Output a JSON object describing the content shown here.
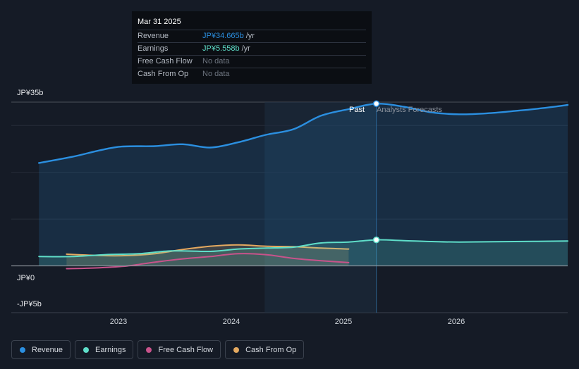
{
  "chart_data": {
    "type": "line",
    "y_unit": "JPY billions",
    "ylim": [
      -10,
      35
    ],
    "y_ticks": [
      {
        "value": 35,
        "label": "JP¥35b"
      },
      {
        "value": 0,
        "label": "JP¥0"
      },
      {
        "value": -5,
        "label": "-JP¥5b"
      }
    ],
    "x_ticks": [
      {
        "value": 2023.0,
        "label": "2023"
      },
      {
        "value": 2024.0,
        "label": "2024"
      },
      {
        "value": 2025.0,
        "label": "2025"
      },
      {
        "value": 2026.0,
        "label": "2026"
      }
    ],
    "xlim": [
      2021.95,
      2026.98
    ],
    "past_shade_start": 2024.24,
    "divider_x": 2025.25,
    "past_label": "Past",
    "forecast_label": "Analysts Forecasts",
    "series": [
      {
        "name": "Revenue",
        "color": "#2b8fe0",
        "fill": true,
        "points": [
          [
            2022.2,
            22.0
          ],
          [
            2022.5,
            23.3
          ],
          [
            2022.75,
            24.7
          ],
          [
            2022.95,
            25.5
          ],
          [
            2023.25,
            25.6
          ],
          [
            2023.5,
            26.0
          ],
          [
            2023.75,
            25.3
          ],
          [
            2024.0,
            26.4
          ],
          [
            2024.25,
            28.0
          ],
          [
            2024.5,
            29.2
          ],
          [
            2024.75,
            32.1
          ],
          [
            2025.0,
            33.5
          ],
          [
            2025.25,
            34.665
          ],
          [
            2025.5,
            34.0
          ],
          [
            2025.75,
            32.8
          ],
          [
            2026.0,
            32.4
          ],
          [
            2026.25,
            32.6
          ],
          [
            2026.5,
            33.1
          ],
          [
            2026.75,
            33.7
          ],
          [
            2026.98,
            34.4
          ]
        ]
      },
      {
        "name": "Earnings",
        "color": "#5fdec9",
        "fill": true,
        "points": [
          [
            2022.2,
            2.0
          ],
          [
            2022.5,
            2.0
          ],
          [
            2022.8,
            2.4
          ],
          [
            2023.1,
            2.6
          ],
          [
            2023.4,
            3.2
          ],
          [
            2023.75,
            3.1
          ],
          [
            2024.0,
            3.6
          ],
          [
            2024.25,
            3.8
          ],
          [
            2024.5,
            4.0
          ],
          [
            2024.75,
            4.9
          ],
          [
            2025.0,
            5.1
          ],
          [
            2025.25,
            5.558
          ],
          [
            2025.5,
            5.4
          ],
          [
            2025.75,
            5.2
          ],
          [
            2026.0,
            5.1
          ],
          [
            2026.5,
            5.2
          ],
          [
            2026.98,
            5.3
          ]
        ]
      },
      {
        "name": "Free Cash Flow",
        "color": "#c8538b",
        "fill": false,
        "points": [
          [
            2022.45,
            -0.6
          ],
          [
            2022.75,
            -0.4
          ],
          [
            2023.0,
            0.0
          ],
          [
            2023.25,
            0.8
          ],
          [
            2023.5,
            1.5
          ],
          [
            2023.75,
            2.0
          ],
          [
            2024.0,
            2.6
          ],
          [
            2024.25,
            2.4
          ],
          [
            2024.5,
            1.6
          ],
          [
            2024.75,
            1.1
          ],
          [
            2025.0,
            0.7
          ]
        ]
      },
      {
        "name": "Cash From Op",
        "color": "#e4a960",
        "fill": true,
        "points": [
          [
            2022.45,
            2.5
          ],
          [
            2022.75,
            2.2
          ],
          [
            2023.0,
            2.2
          ],
          [
            2023.25,
            2.6
          ],
          [
            2023.5,
            3.5
          ],
          [
            2023.75,
            4.2
          ],
          [
            2024.0,
            4.5
          ],
          [
            2024.25,
            4.2
          ],
          [
            2024.5,
            4.1
          ],
          [
            2024.75,
            3.8
          ],
          [
            2025.0,
            3.6
          ]
        ]
      }
    ],
    "tooltip": {
      "date": "Mar 31 2025",
      "rows": [
        {
          "label": "Revenue",
          "value": "JP¥34.665b",
          "unit": "/yr",
          "color": "#2b8fe0"
        },
        {
          "label": "Earnings",
          "value": "JP¥5.558b",
          "unit": "/yr",
          "color": "#5fdec9"
        },
        {
          "label": "Free Cash Flow",
          "value": "No data",
          "unit": "",
          "color": "#6e7580"
        },
        {
          "label": "Cash From Op",
          "value": "No data",
          "unit": "",
          "color": "#6e7580"
        }
      ]
    }
  },
  "legend": [
    {
      "label": "Revenue",
      "color": "#2b8fe0"
    },
    {
      "label": "Earnings",
      "color": "#5fdec9"
    },
    {
      "label": "Free Cash Flow",
      "color": "#c8538b"
    },
    {
      "label": "Cash From Op",
      "color": "#e4a960"
    }
  ]
}
